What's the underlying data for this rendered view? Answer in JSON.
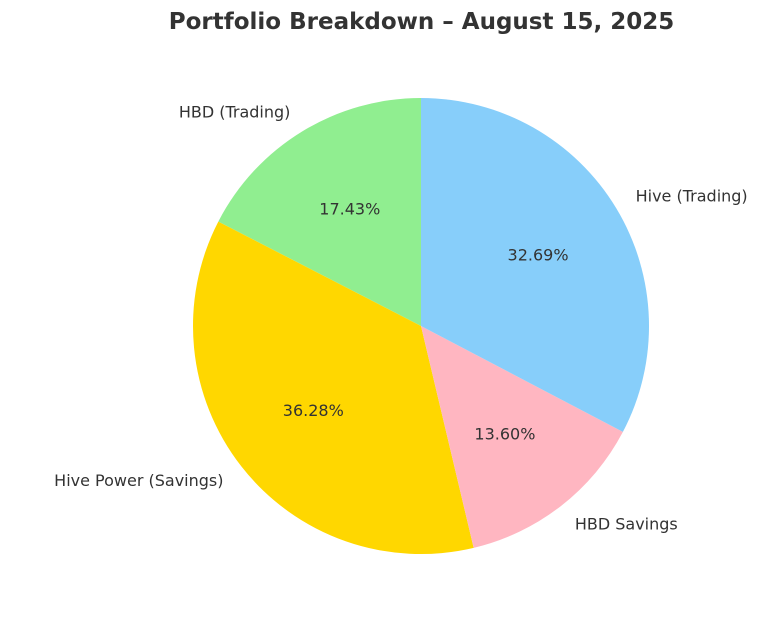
{
  "chart_data": {
    "type": "pie",
    "title": "Portfolio Breakdown – August 15, 2025",
    "start_angle_deg": 90,
    "direction": "counterclockwise",
    "slices": [
      {
        "label": "HBD (Trading)",
        "value": 17.43,
        "percent_label": "17.43%",
        "color": "#90ee90"
      },
      {
        "label": "Hive Power (Savings)",
        "value": 36.28,
        "percent_label": "36.28%",
        "color": "#ffd700"
      },
      {
        "label": "HBD Savings",
        "value": 13.6,
        "percent_label": "13.60%",
        "color": "#ffb6c1"
      },
      {
        "label": "Hive (Trading)",
        "value": 32.69,
        "percent_label": "32.69%",
        "color": "#87cefa"
      }
    ]
  }
}
